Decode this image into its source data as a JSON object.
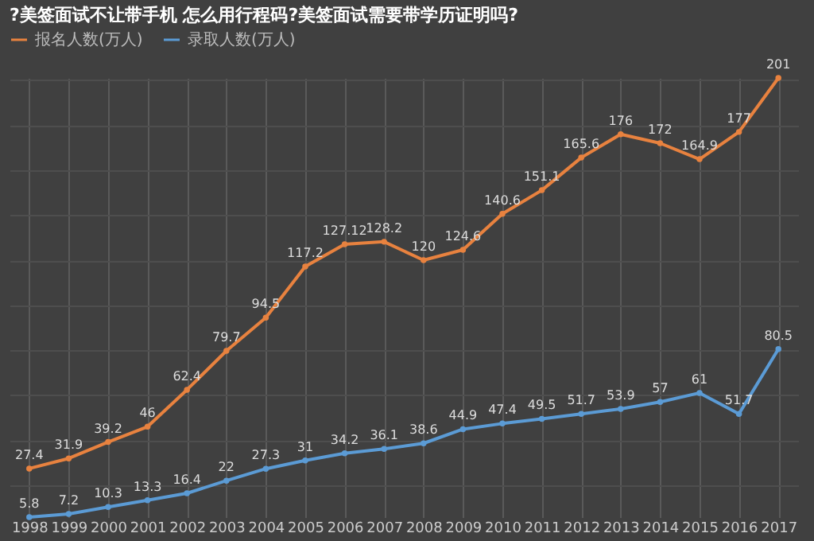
{
  "chart_data": {
    "type": "line",
    "title": "?美签面试不让带手机 怎么用行程码?美签面试需要带学历证明吗?",
    "categories": [
      "1998",
      "1999",
      "2000",
      "2001",
      "2002",
      "2003",
      "2004",
      "2005",
      "2006",
      "2007",
      "2008",
      "2009",
      "2010",
      "2011",
      "2012",
      "2013",
      "2014",
      "2015",
      "2016",
      "2017"
    ],
    "series": [
      {
        "name": "报名人数(万人)",
        "color": "#e8823f",
        "values": [
          27.4,
          31.9,
          39.2,
          46,
          62.4,
          79.7,
          94.5,
          117.2,
          127.12,
          128.2,
          120,
          124.6,
          140.6,
          151.1,
          165.6,
          176,
          172,
          164.9,
          177,
          201
        ]
      },
      {
        "name": "录取人数(万人)",
        "color": "#5b9bd5",
        "values": [
          5.8,
          7.2,
          10.3,
          13.3,
          16.4,
          22,
          27.3,
          31,
          34.2,
          36.1,
          38.6,
          44.9,
          47.4,
          49.5,
          51.7,
          53.9,
          57,
          61,
          51.7,
          80.5
        ]
      }
    ],
    "data_labels": true,
    "grid": true,
    "legend": "top",
    "marker": "circle",
    "line_style": "solid",
    "tick_labels": "x"
  }
}
